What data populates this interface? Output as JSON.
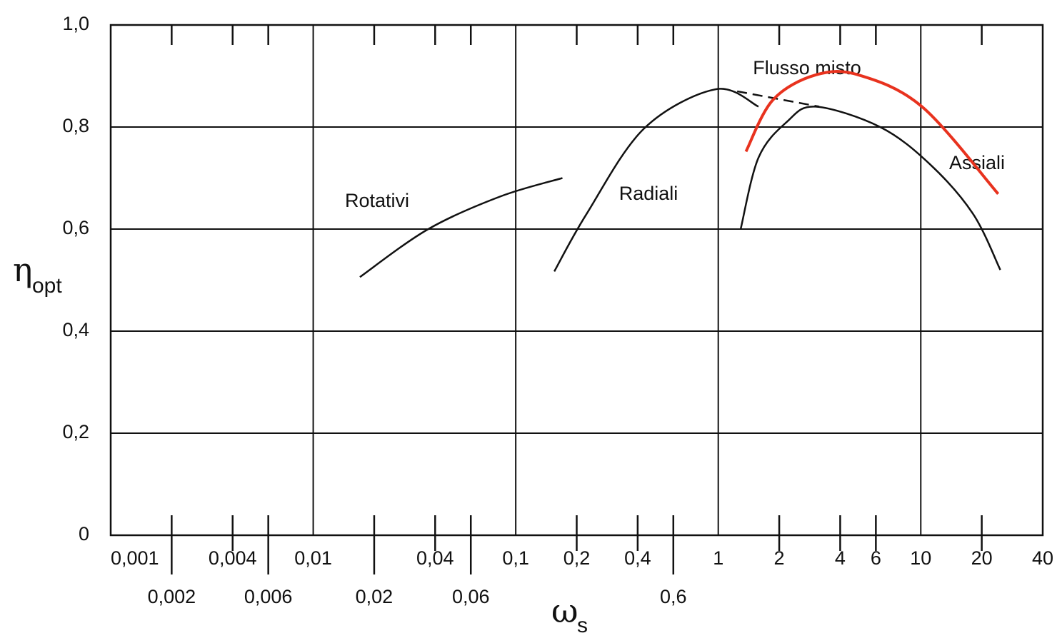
{
  "chart_data": {
    "type": "line",
    "x_log": true,
    "xlim": [
      0.001,
      40
    ],
    "ylim": [
      0,
      1.0
    ],
    "xticks": [
      {
        "value": 0.001,
        "label": "0,001"
      },
      {
        "value": 0.002,
        "label": "0,002"
      },
      {
        "value": 0.004,
        "label": "0,004"
      },
      {
        "value": 0.006,
        "label": "0,006"
      },
      {
        "value": 0.01,
        "label": "0,01"
      },
      {
        "value": 0.02,
        "label": "0,02"
      },
      {
        "value": 0.04,
        "label": "0,04"
      },
      {
        "value": 0.06,
        "label": "0,06"
      },
      {
        "value": 0.1,
        "label": "0,1"
      },
      {
        "value": 0.2,
        "label": "0,2"
      },
      {
        "value": 0.4,
        "label": "0,4"
      },
      {
        "value": 0.6,
        "label": "0,6"
      },
      1,
      2,
      4,
      6,
      10,
      20,
      40
    ],
    "yticks": [
      0,
      {
        "value": 0.2,
        "label": "0,2"
      },
      {
        "value": 0.4,
        "label": "0,4"
      },
      {
        "value": 0.6,
        "label": "0,6"
      },
      {
        "value": 0.8,
        "label": "0,8"
      },
      {
        "value": 1.0,
        "label": "1,0"
      }
    ],
    "grid": true,
    "x_label": "ω",
    "x_label_sub": "s",
    "y_label": "η",
    "y_label_sub": "opt",
    "series": [
      {
        "name": "Rotativi",
        "color": "#111111",
        "x": [
          0.017,
          0.037,
          0.084,
          0.17
        ],
        "values": [
          0.506,
          0.6,
          0.664,
          0.7
        ]
      },
      {
        "name": "Radiali",
        "color": "#111111",
        "x": [
          0.155,
          0.224,
          0.43,
          0.97,
          1.58
        ],
        "values": [
          0.517,
          0.63,
          0.797,
          0.874,
          0.84
        ]
      },
      {
        "name": "Flusso misto",
        "color": "#111111",
        "dashed": true,
        "x": [
          1.24,
          3.15
        ],
        "values": [
          0.87,
          0.84
        ]
      },
      {
        "name": "Assiali",
        "color": "#111111",
        "x": [
          1.29,
          1.58,
          2.18,
          3.02,
          6.3,
          11.1,
          18.1,
          24.7
        ],
        "values": [
          0.6,
          0.74,
          0.81,
          0.84,
          0.8,
          0.727,
          0.63,
          0.52
        ]
      },
      {
        "color": "#e8321e",
        "x": [
          1.37,
          1.86,
          3.02,
          4.93,
          10.2,
          24.1
        ],
        "values": [
          0.752,
          0.853,
          0.902,
          0.902,
          0.839,
          0.669
        ]
      }
    ]
  }
}
